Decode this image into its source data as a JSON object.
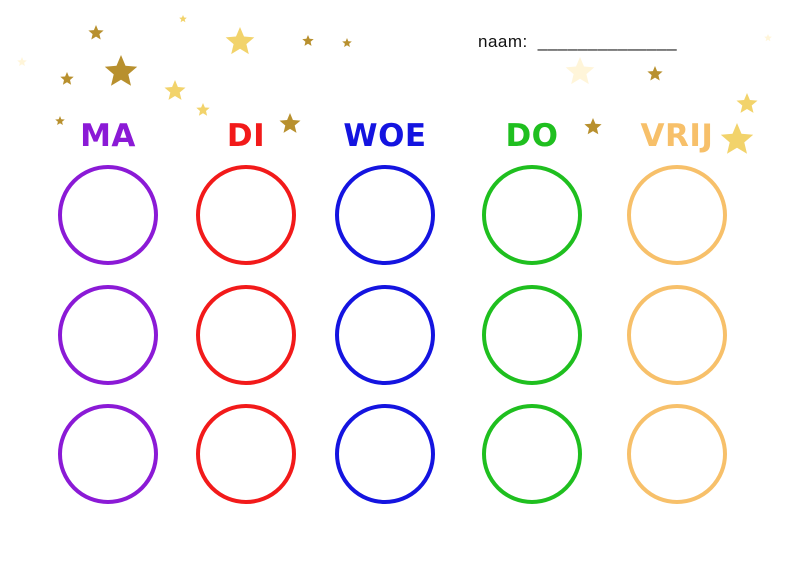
{
  "header": {
    "name_label": "naam:",
    "name_line": "______________"
  },
  "days": [
    {
      "label": "MA",
      "color": "#8b1ad6"
    },
    {
      "label": "DI",
      "color": "#f21a1a"
    },
    {
      "label": "WOE",
      "color": "#1414e0"
    },
    {
      "label": "DO",
      "color": "#1fbf1f"
    },
    {
      "label": "VRIJ",
      "color": "#f7c06a"
    }
  ],
  "rows_per_day": 3,
  "decoration": {
    "icon": "star-icon",
    "colors": [
      "#b8902e",
      "#f2d36b",
      "#fff5d9"
    ]
  }
}
